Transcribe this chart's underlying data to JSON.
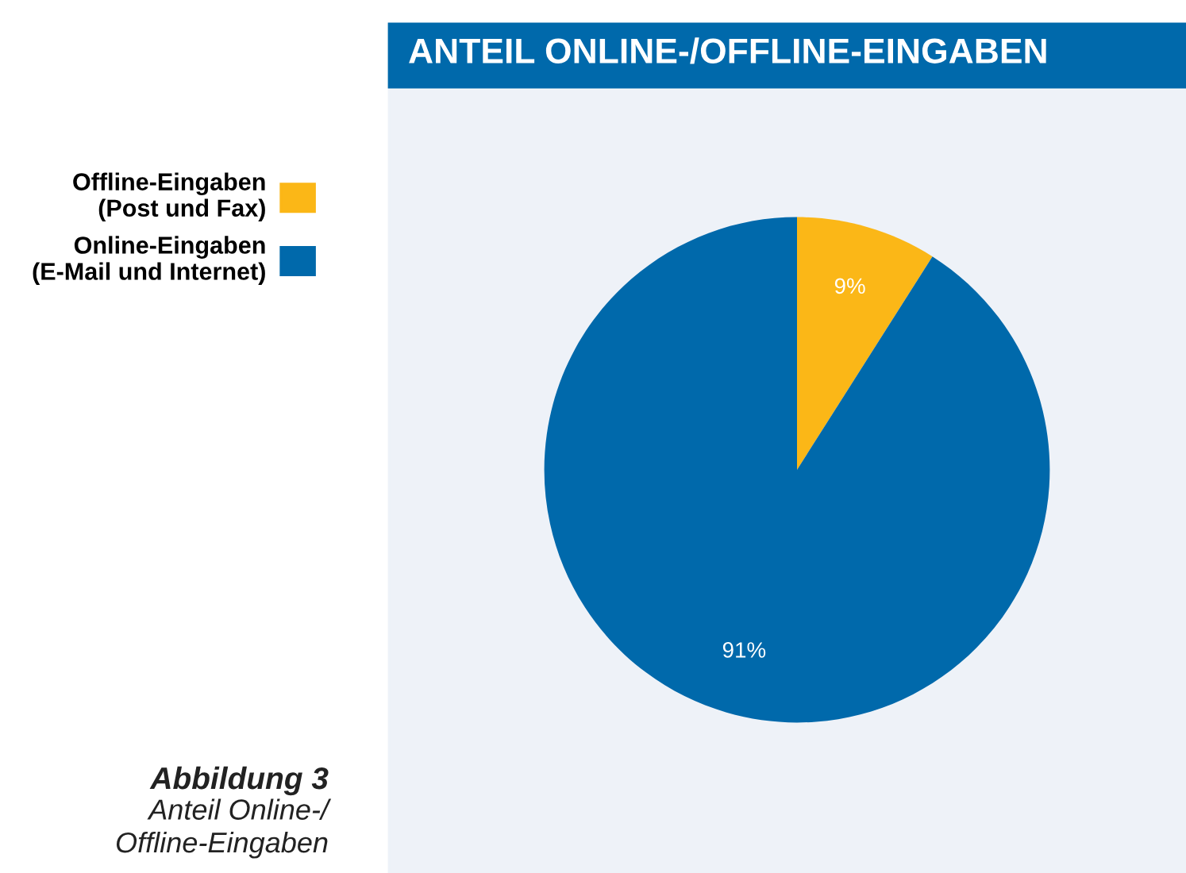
{
  "chart_data": {
    "type": "pie",
    "title": "ANTEIL ONLINE-/OFFLINE-EINGABEN",
    "categories": [
      "Offline-Eingaben\n(Post und Fax)",
      "Online-Eingaben\n(E-Mail und Internet)"
    ],
    "values": [
      9,
      91
    ],
    "colors": [
      "#fbb717",
      "#0069ab"
    ],
    "value_labels": [
      "9%",
      "91%"
    ],
    "legend": "left",
    "annotations": [
      "Abbildung 3",
      "Anteil Online-/\nOffline-Eingaben"
    ]
  }
}
